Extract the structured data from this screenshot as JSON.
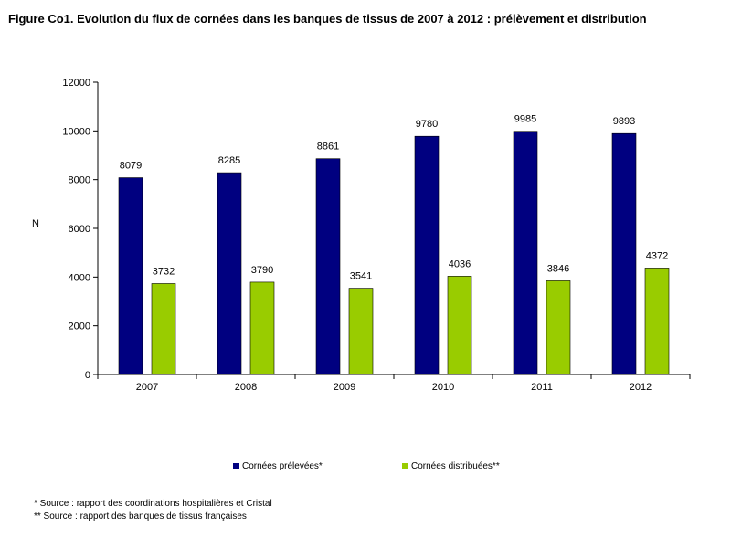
{
  "title": "Figure Co1. Evolution du flux de cornées dans les banques de tissus de 2007 à 2012 : prélèvement et distribution",
  "notes": [
    "* Source : rapport des coordinations hospitalières et Cristal",
    "** Source : rapport des banques de tissus françaises"
  ],
  "chart_data": {
    "type": "bar",
    "title": "Figure Co1. Evolution du flux de cornées dans les banques de tissus de 2007 à 2012 : prélèvement et distribution",
    "xlabel": "",
    "ylabel": "N",
    "ylim": [
      0,
      12000
    ],
    "yticks": [
      0,
      2000,
      4000,
      6000,
      8000,
      10000,
      12000
    ],
    "grid": false,
    "legend_position": "bottom",
    "categories": [
      "2007",
      "2008",
      "2009",
      "2010",
      "2011",
      "2012"
    ],
    "series": [
      {
        "name": "Cornées prélevées*",
        "color": "#000080",
        "values": [
          8079,
          8285,
          8861,
          9780,
          9985,
          9893
        ]
      },
      {
        "name": "Cornées distribuées**",
        "color": "#99CC00",
        "values": [
          3732,
          3790,
          3541,
          4036,
          3846,
          4372
        ]
      }
    ]
  }
}
